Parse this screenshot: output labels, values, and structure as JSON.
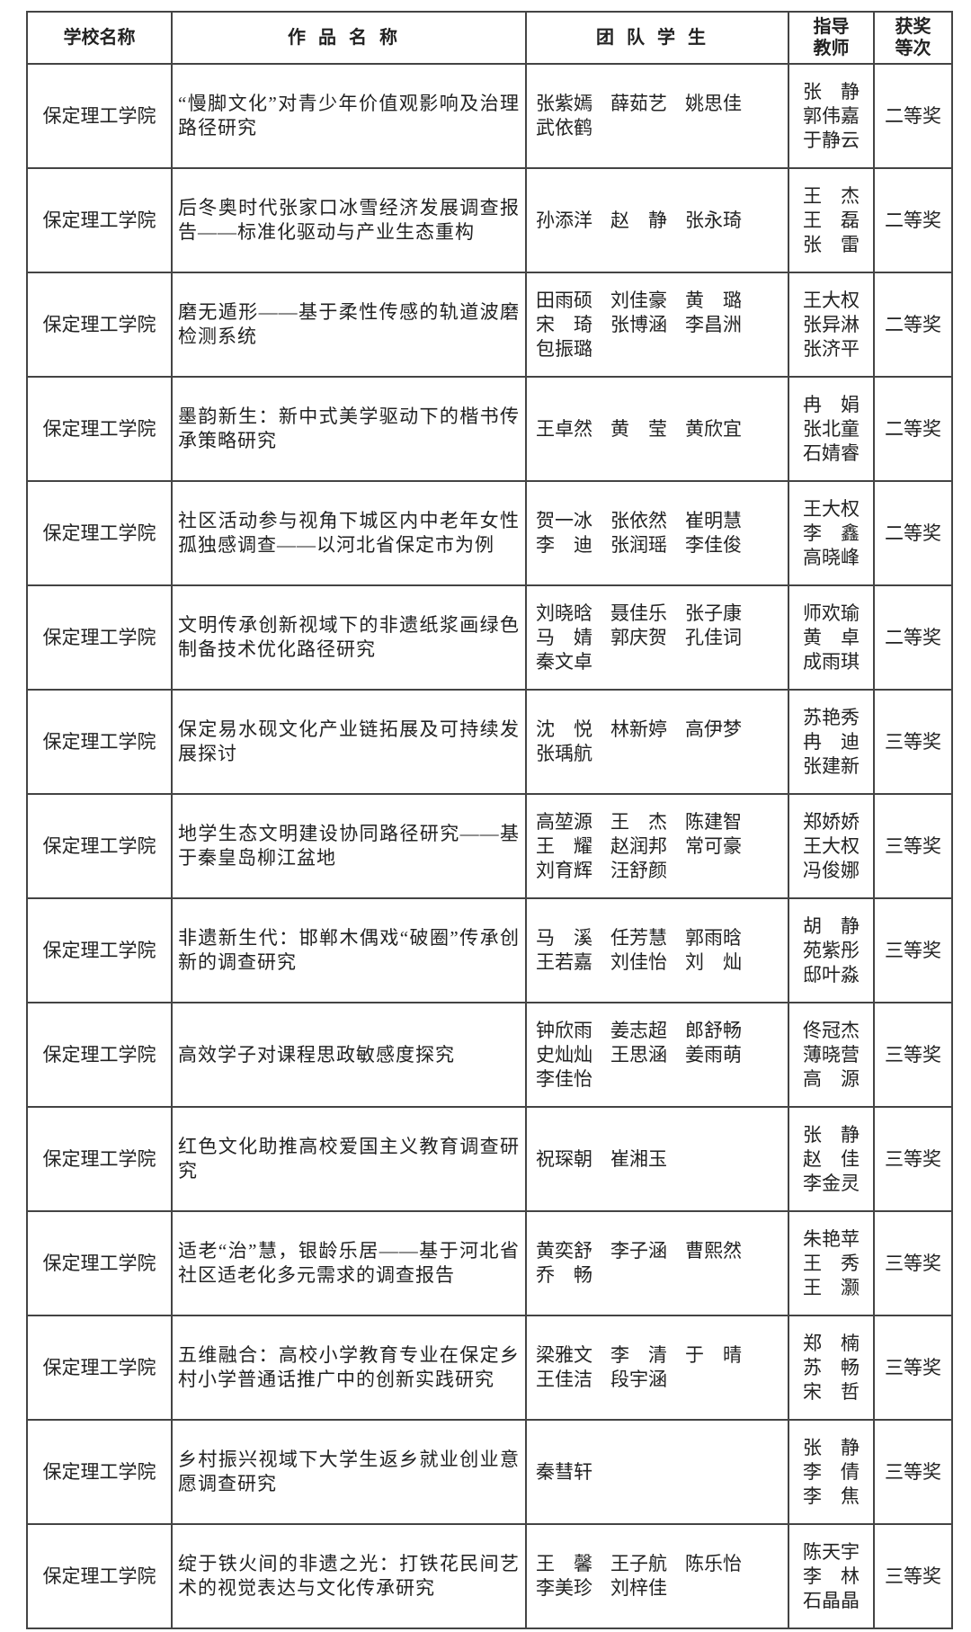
{
  "header": {
    "school": "学校名称",
    "title": "作品名称",
    "students": "团队学生",
    "teachers_line1": "指导",
    "teachers_line2": "教师",
    "award_line1": "获奖",
    "award_line2": "等次"
  },
  "rows": [
    {
      "school": "保定理工学院",
      "title": "“慢脚文化”对青少年价值观影响及治理路径研究",
      "students": [
        "张紫嫣",
        "薛茹艺",
        "姚思佳",
        "武依鹤"
      ],
      "teachers": [
        "张静",
        "郭伟嘉",
        "于静云"
      ],
      "award": "二等奖"
    },
    {
      "school": "保定理工学院",
      "title": "后冬奥时代张家口冰雪经济发展调查报告——标准化驱动与产业生态重构",
      "students": [
        "孙添洋",
        "赵静",
        "张永琦"
      ],
      "teachers": [
        "王杰",
        "王磊",
        "张雷"
      ],
      "award": "二等奖"
    },
    {
      "school": "保定理工学院",
      "title": "磨无遁形——基于柔性传感的轨道波磨检测系统",
      "students": [
        "田雨硕",
        "刘佳豪",
        "黄璐",
        "宋琦",
        "张博涵",
        "李昌洲",
        "包振璐"
      ],
      "teachers": [
        "王大权",
        "张异淋",
        "张济平"
      ],
      "award": "二等奖"
    },
    {
      "school": "保定理工学院",
      "title": "墨韵新生：新中式美学驱动下的楷书传承策略研究",
      "students": [
        "王卓然",
        "黄莹",
        "黄欣宜"
      ],
      "teachers": [
        "冉娟",
        "张北童",
        "石婧睿"
      ],
      "award": "二等奖"
    },
    {
      "school": "保定理工学院",
      "title": "社区活动参与视角下城区内中老年女性孤独感调查——以河北省保定市为例",
      "students": [
        "贺一冰",
        "张依然",
        "崔明慧",
        "李迪",
        "张润瑶",
        "李佳俊"
      ],
      "teachers": [
        "王大权",
        "李鑫",
        "高晓峰"
      ],
      "award": "二等奖"
    },
    {
      "school": "保定理工学院",
      "title": "文明传承创新视域下的非遗纸浆画绿色制备技术优化路径研究",
      "students": [
        "刘晓晗",
        "聂佳乐",
        "张子康",
        "马婧",
        "郭庆贺",
        "孔佳词",
        "秦文卓"
      ],
      "teachers": [
        "师欢瑜",
        "黄卓",
        "成雨琪"
      ],
      "award": "二等奖"
    },
    {
      "school": "保定理工学院",
      "title": "保定易水砚文化产业链拓展及可持续发展探讨",
      "students": [
        "沈悦",
        "林新婷",
        "高伊梦",
        "张瑀航"
      ],
      "teachers": [
        "苏艳秀",
        "冉迪",
        "张建新"
      ],
      "award": "三等奖"
    },
    {
      "school": "保定理工学院",
      "title": "地学生态文明建设协同路径研究——基于秦皇岛柳江盆地",
      "students": [
        "高堃源",
        "王杰",
        "陈建智",
        "王耀",
        "赵润邦",
        "常可豪",
        "刘育辉",
        "汪舒颜"
      ],
      "teachers": [
        "郑娇娇",
        "王大权",
        "冯俊娜"
      ],
      "award": "三等奖"
    },
    {
      "school": "保定理工学院",
      "title": "非遗新生代：邯郸木偶戏“破圈”传承创新的调查研究",
      "students": [
        "马溪",
        "任芳慧",
        "郭雨晗",
        "王若嘉",
        "刘佳怡",
        "刘灿"
      ],
      "teachers": [
        "胡静",
        "苑紫彤",
        "邸叶淼"
      ],
      "award": "三等奖"
    },
    {
      "school": "保定理工学院",
      "title": "高效学子对课程思政敏感度探究",
      "students": [
        "钟欣雨",
        "姜志超",
        "郎舒畅",
        "史灿灿",
        "王思涵",
        "姜雨萌",
        "李佳怡"
      ],
      "teachers": [
        "佟冠杰",
        "薄晓营",
        "高源"
      ],
      "award": "三等奖"
    },
    {
      "school": "保定理工学院",
      "title": "红色文化助推高校爱国主义教育调查研究",
      "students": [
        "祝琛朝",
        "崔湘玉"
      ],
      "teachers": [
        "张静",
        "赵佳",
        "李金灵"
      ],
      "award": "三等奖"
    },
    {
      "school": "保定理工学院",
      "title": "适老“治”慧，银龄乐居——基于河北省社区适老化多元需求的调查报告",
      "students": [
        "黄奕舒",
        "李子涵",
        "曹熙然",
        "乔畅"
      ],
      "teachers": [
        "朱艳苹",
        "王秀",
        "王灏"
      ],
      "award": "三等奖"
    },
    {
      "school": "保定理工学院",
      "title": "五维融合：高校小学教育专业在保定乡村小学普通话推广中的创新实践研究",
      "students": [
        "梁雅文",
        "李清",
        "于晴",
        "王佳洁",
        "段宇涵"
      ],
      "teachers": [
        "郑楠",
        "苏畅",
        "宋哲"
      ],
      "award": "三等奖"
    },
    {
      "school": "保定理工学院",
      "title": "乡村振兴视域下大学生返乡就业创业意愿调查研究",
      "students": [
        "秦彗轩"
      ],
      "teachers": [
        "张静",
        "李倩",
        "李焦"
      ],
      "award": "三等奖"
    },
    {
      "school": "保定理工学院",
      "title": "绽于铁火间的非遗之光：打铁花民间艺术的视觉表达与文化传承研究",
      "students": [
        "王馨",
        "王子航",
        "陈乐怡",
        "李美珍",
        "刘梓佳"
      ],
      "teachers": [
        "陈天宇",
        "李林",
        "石晶晶"
      ],
      "award": "三等奖"
    }
  ]
}
